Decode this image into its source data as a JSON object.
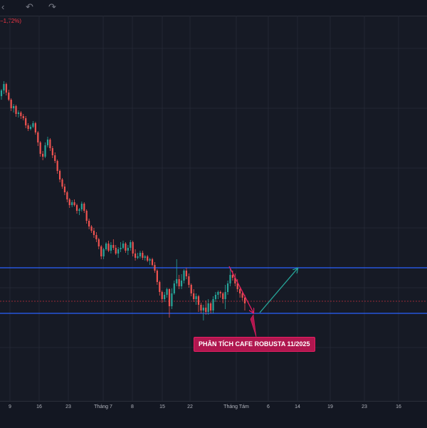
{
  "toolbar": {
    "left_icon": "chevron-icon",
    "undo_icon": "undo-icon",
    "redo_icon": "redo-icon"
  },
  "change_label": "−1,72%)",
  "annotation": {
    "text": "PHÂN TÍCH CAFE ROBUSTA 11/2025"
  },
  "colors": {
    "background": "#161a25",
    "grid": "#232734",
    "up": "#26a69a",
    "down": "#ef5350",
    "level_line": "#2962ff",
    "current_price_line": "#f23645",
    "down_arrow": "#e91e63",
    "up_arrow": "#26a69a",
    "callout_bg": "#b0174f"
  },
  "chart_data": {
    "type": "candlestick",
    "x_tick_labels": [
      "9",
      "16",
      "23",
      "Tháng 7",
      "8",
      "15",
      "22",
      "Tháng Tám",
      "6",
      "14",
      "19",
      "23",
      "16"
    ],
    "y_tick_labels": [],
    "grid": true,
    "candles": [
      [
        135,
        127,
        140,
        125
      ],
      [
        127,
        118,
        132,
        114
      ],
      [
        118,
        130,
        134,
        116
      ],
      [
        130,
        140,
        142,
        126
      ],
      [
        140,
        152,
        156,
        138
      ],
      [
        152,
        149,
        158,
        146
      ],
      [
        149,
        160,
        164,
        147
      ],
      [
        160,
        158,
        165,
        155
      ],
      [
        158,
        163,
        167,
        156
      ],
      [
        163,
        166,
        169,
        160
      ],
      [
        166,
        176,
        180,
        163
      ],
      [
        176,
        181,
        184,
        173
      ],
      [
        181,
        178,
        183,
        175
      ],
      [
        178,
        173,
        180,
        170
      ],
      [
        173,
        186,
        189,
        171
      ],
      [
        186,
        200,
        205,
        184
      ],
      [
        200,
        216,
        220,
        198
      ],
      [
        216,
        220,
        225,
        212
      ],
      [
        220,
        204,
        222,
        200
      ],
      [
        204,
        196,
        207,
        192
      ],
      [
        196,
        208,
        212,
        194
      ],
      [
        208,
        218,
        222,
        205
      ],
      [
        218,
        226,
        229,
        214
      ],
      [
        226,
        240,
        244,
        224
      ],
      [
        240,
        252,
        256,
        238
      ],
      [
        252,
        262,
        265,
        250
      ],
      [
        262,
        270,
        274,
        258
      ],
      [
        270,
        280,
        284,
        268
      ],
      [
        280,
        288,
        292,
        278
      ],
      [
        288,
        284,
        291,
        281
      ],
      [
        284,
        288,
        290,
        280
      ],
      [
        288,
        296,
        300,
        286
      ],
      [
        296,
        294,
        302,
        292
      ],
      [
        294,
        286,
        297,
        283
      ],
      [
        286,
        296,
        299,
        284
      ],
      [
        296,
        310,
        314,
        294
      ],
      [
        310,
        318,
        322,
        307
      ],
      [
        318,
        324,
        327,
        316
      ],
      [
        324,
        330,
        334,
        320
      ],
      [
        330,
        336,
        340,
        326
      ],
      [
        336,
        346,
        350,
        334
      ],
      [
        346,
        360,
        364,
        344
      ],
      [
        360,
        350,
        364,
        348
      ],
      [
        350,
        342,
        352,
        340
      ],
      [
        342,
        352,
        354,
        338
      ],
      [
        352,
        344,
        356,
        340
      ],
      [
        344,
        348,
        351,
        336
      ],
      [
        348,
        356,
        358,
        344
      ],
      [
        356,
        350,
        362,
        347
      ],
      [
        350,
        348,
        354,
        340
      ],
      [
        348,
        342,
        350,
        338
      ],
      [
        342,
        352,
        355,
        340
      ],
      [
        352,
        348,
        358,
        344
      ],
      [
        348,
        340,
        352,
        337
      ],
      [
        340,
        356,
        360,
        338
      ],
      [
        356,
        362,
        366,
        350
      ],
      [
        362,
        360,
        364,
        355
      ],
      [
        360,
        355,
        363,
        352
      ],
      [
        355,
        362,
        365,
        352
      ],
      [
        362,
        360,
        366,
        358
      ],
      [
        360,
        366,
        368,
        358
      ],
      [
        366,
        364,
        372,
        362
      ],
      [
        364,
        372,
        374,
        362
      ],
      [
        372,
        380,
        383,
        368
      ],
      [
        380,
        396,
        400,
        378
      ],
      [
        396,
        410,
        415,
        394
      ],
      [
        410,
        420,
        425,
        408
      ],
      [
        420,
        414,
        424,
        410
      ],
      [
        414,
        406,
        418,
        404
      ],
      [
        406,
        430,
        446,
        405
      ],
      [
        430,
        412,
        434,
        405
      ],
      [
        412,
        398,
        414,
        394
      ],
      [
        398,
        392,
        402,
        364
      ],
      [
        392,
        402,
        406,
        386
      ],
      [
        402,
        394,
        406,
        385
      ],
      [
        394,
        380,
        398,
        378
      ],
      [
        380,
        388,
        392,
        376
      ],
      [
        388,
        400,
        404,
        384
      ],
      [
        400,
        412,
        416,
        398
      ],
      [
        412,
        420,
        424,
        406
      ],
      [
        420,
        416,
        428,
        412
      ],
      [
        416,
        428,
        438,
        414
      ],
      [
        428,
        436,
        440,
        425
      ],
      [
        436,
        432,
        450,
        428
      ],
      [
        432,
        438,
        442,
        422
      ],
      [
        438,
        426,
        442,
        420
      ],
      [
        426,
        436,
        440,
        424
      ],
      [
        436,
        420,
        440,
        416
      ],
      [
        420,
        414,
        424,
        410
      ],
      [
        414,
        410,
        420,
        408
      ],
      [
        410,
        412,
        418,
        408
      ],
      [
        412,
        420,
        426,
        410
      ],
      [
        420,
        410,
        434,
        400
      ],
      [
        410,
        398,
        414,
        394
      ],
      [
        398,
        386,
        402,
        376
      ],
      [
        386,
        390,
        394,
        380
      ],
      [
        390,
        398,
        402,
        384
      ],
      [
        398,
        406,
        410,
        392
      ],
      [
        406,
        412,
        418,
        404
      ],
      [
        412,
        418,
        422,
        410
      ],
      [
        418,
        426,
        436,
        414
      ]
    ],
    "horizontal_levels": [
      376,
      440
    ],
    "current_price_level": 423,
    "projection": {
      "down_arrow": [
        [
          322,
          374
        ],
        [
          356,
          439
        ]
      ],
      "up_arrow": [
        [
          365,
          439
        ],
        [
          418,
          377
        ]
      ]
    }
  }
}
